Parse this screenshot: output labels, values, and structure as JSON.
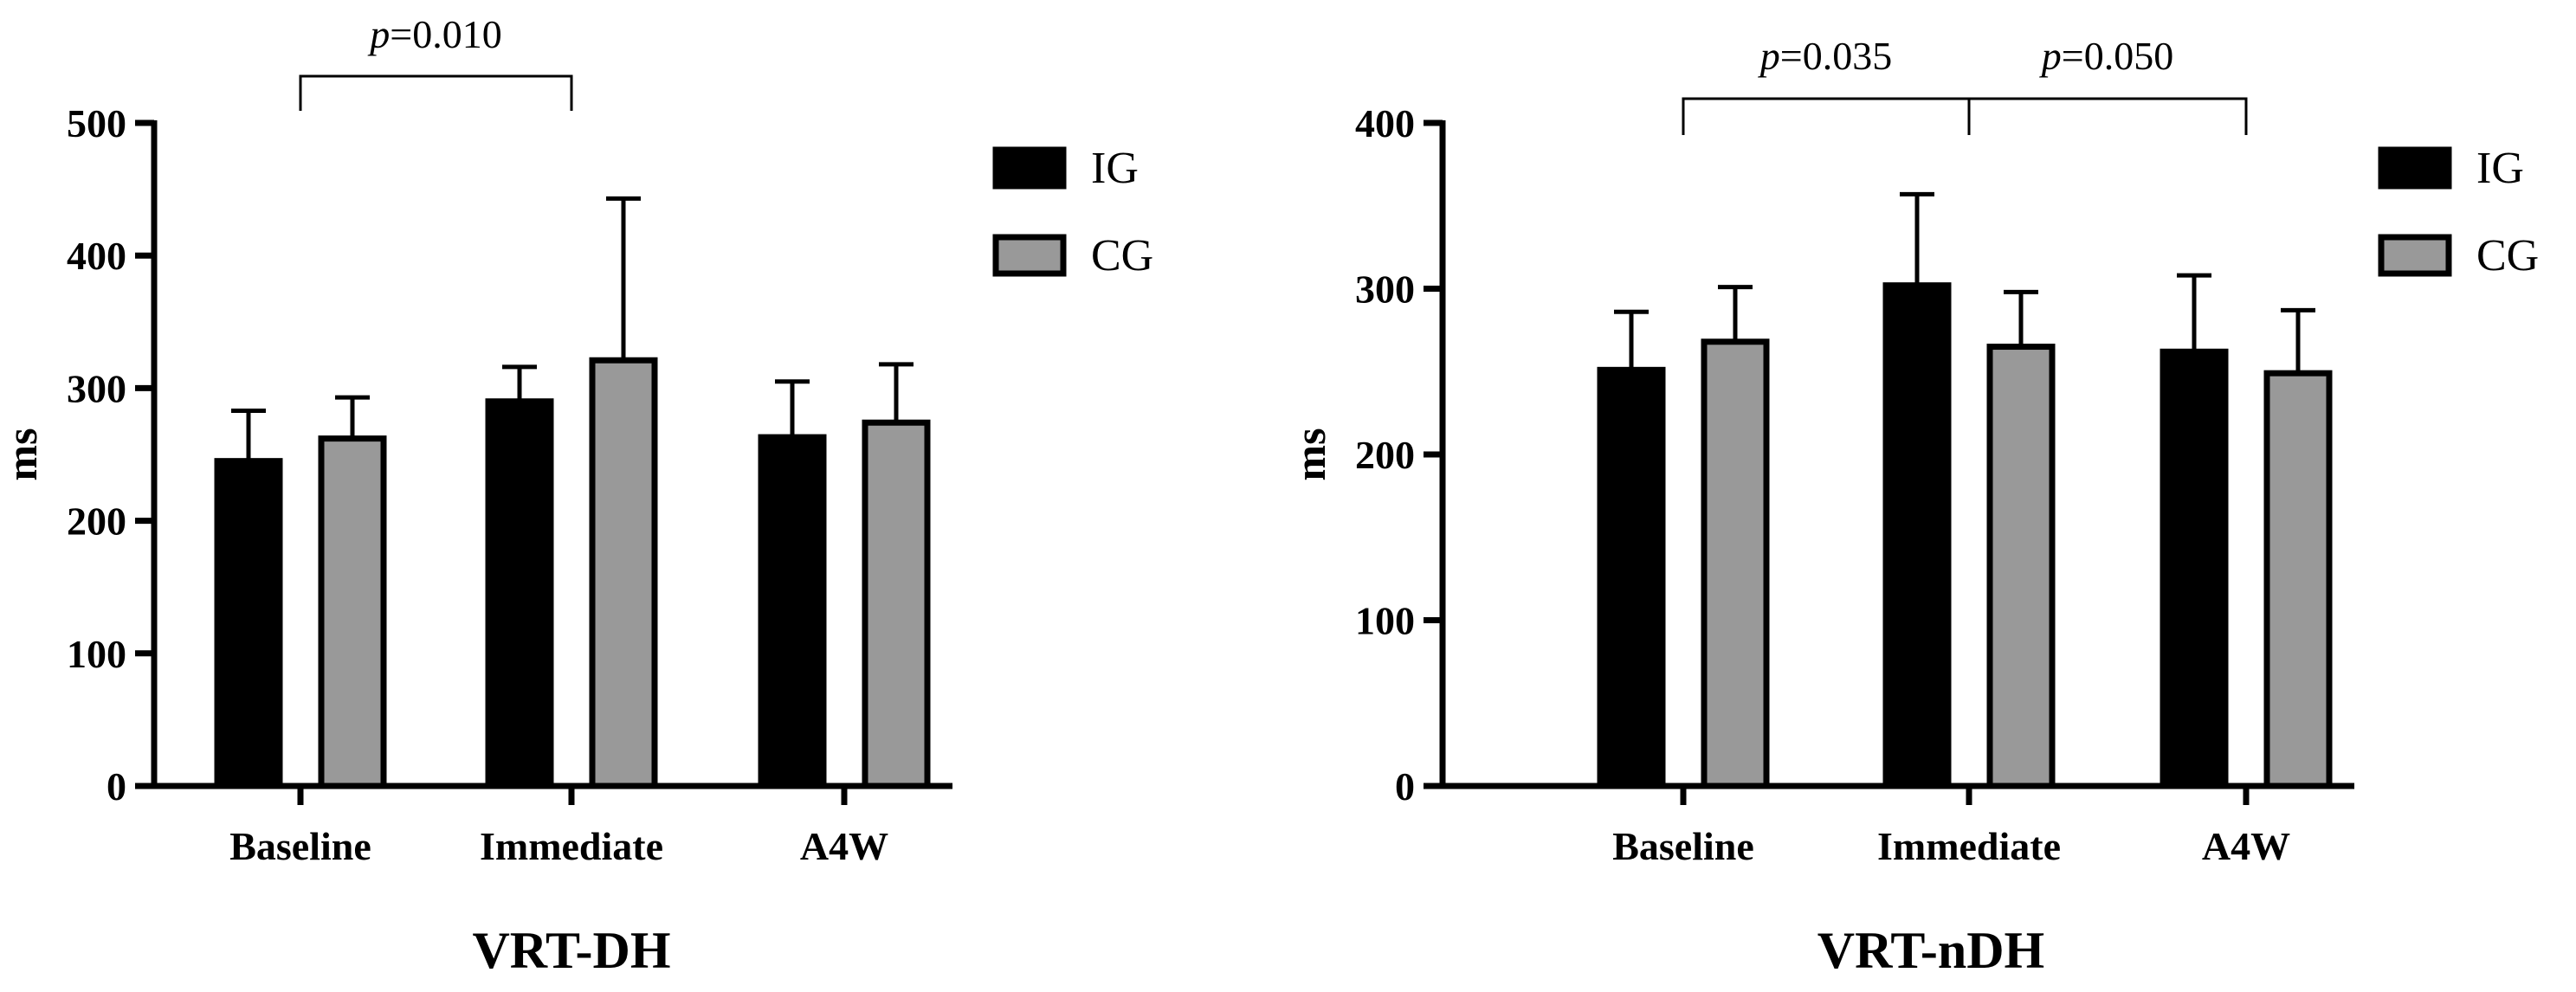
{
  "chart_data": [
    {
      "type": "bar",
      "title": "VRT-DH",
      "ylabel": "ms",
      "xlabel": "",
      "ylim": [
        0,
        500
      ],
      "yticks": [
        0,
        100,
        200,
        300,
        400,
        500
      ],
      "categories": [
        "Baseline",
        "Immediate",
        "A4W"
      ],
      "series": [
        {
          "name": "IG",
          "color": "#000000",
          "values": [
            245,
            290,
            263
          ],
          "error": [
            38,
            26,
            42
          ]
        },
        {
          "name": "CG",
          "color": "#999999",
          "values": [
            262,
            321,
            274
          ],
          "error": [
            31,
            122,
            44
          ]
        }
      ],
      "significance": [
        {
          "label_prefix": "p",
          "label_value": "=0.010",
          "from": "Baseline",
          "to": "Immediate"
        }
      ],
      "legend_position": "top-right",
      "grid": false
    },
    {
      "type": "bar",
      "title": "VRT-nDH",
      "ylabel": "ms",
      "xlabel": "",
      "ylim": [
        0,
        400
      ],
      "yticks": [
        0,
        100,
        200,
        300,
        400
      ],
      "categories": [
        "Baseline",
        "Immediate",
        "A4W"
      ],
      "series": [
        {
          "name": "IG",
          "color": "#000000",
          "values": [
            251,
            302,
            262
          ],
          "error": [
            35,
            55,
            46
          ]
        },
        {
          "name": "CG",
          "color": "#999999",
          "values": [
            268,
            265,
            249
          ],
          "error": [
            33,
            33,
            38
          ]
        }
      ],
      "significance": [
        {
          "label_prefix": "p",
          "label_value": "=0.035",
          "from": "Baseline",
          "to": "Immediate"
        },
        {
          "label_prefix": "p",
          "label_value": "=0.050",
          "from": "Immediate",
          "to": "A4W"
        }
      ],
      "legend_position": "top-right",
      "grid": false
    }
  ]
}
